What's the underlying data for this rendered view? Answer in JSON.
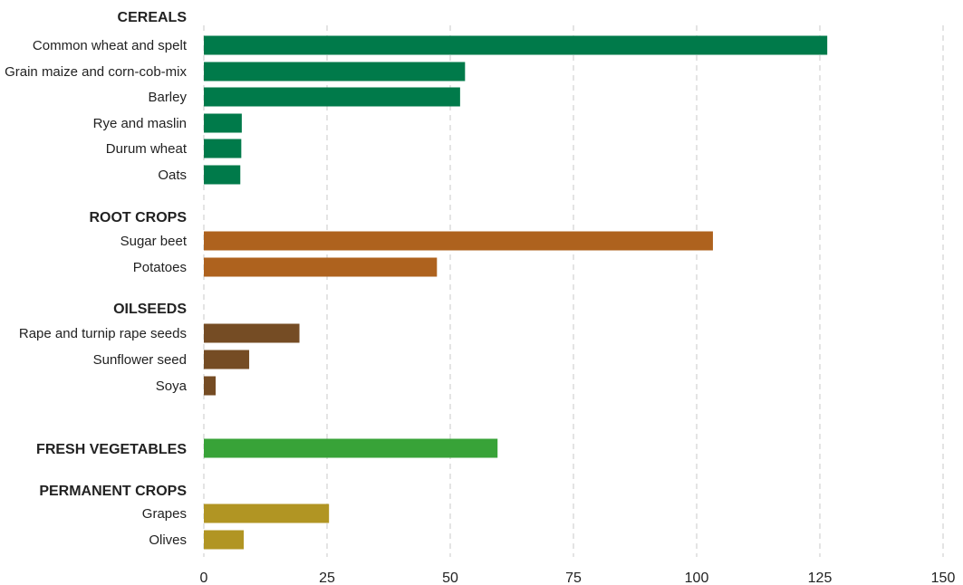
{
  "chart_data": {
    "type": "bar",
    "orientation": "horizontal",
    "xlim": [
      0,
      150
    ],
    "x_ticks": [
      "0",
      "25",
      "50",
      "75",
      "100",
      "125",
      "150"
    ],
    "grid": "vertical dashed",
    "colors": {
      "cereals": "#007a4a",
      "root_crops": "#ae621e",
      "oilseeds": "#754c24",
      "fresh_vegetables": "#38a338",
      "permanent_crops": "#b19523"
    },
    "groups": [
      {
        "key": "cereals",
        "label": "CEREALS",
        "color": "#007a4a",
        "items": [
          {
            "label": "Common wheat and spelt",
            "value": 126.5
          },
          {
            "label": "Grain maize and corn-cob-mix",
            "value": 53.0
          },
          {
            "label": "Barley",
            "value": 52.0
          },
          {
            "label": "Rye and maslin",
            "value": 7.7
          },
          {
            "label": "Durum wheat",
            "value": 7.6
          },
          {
            "label": "Oats",
            "value": 7.4
          }
        ]
      },
      {
        "key": "root_crops",
        "label": "ROOT CROPS",
        "color": "#ae621e",
        "items": [
          {
            "label": "Sugar beet",
            "value": 103.3
          },
          {
            "label": "Potatoes",
            "value": 47.3
          }
        ]
      },
      {
        "key": "oilseeds",
        "label": "OILSEEDS",
        "color": "#754c24",
        "items": [
          {
            "label": "Rape and turnip rape seeds",
            "value": 19.4
          },
          {
            "label": "Sunflower seed",
            "value": 9.2
          },
          {
            "label": "Soya",
            "value": 2.4
          }
        ]
      },
      {
        "key": "fresh_vegetables",
        "label": "FRESH VEGETABLES",
        "color": "#38a338",
        "items": [
          {
            "label": "",
            "value": 59.6
          }
        ]
      },
      {
        "key": "permanent_crops",
        "label": "PERMANENT CROPS",
        "color": "#b19523",
        "items": [
          {
            "label": "Grapes",
            "value": 25.4
          },
          {
            "label": "Olives",
            "value": 8.1
          }
        ]
      }
    ]
  }
}
